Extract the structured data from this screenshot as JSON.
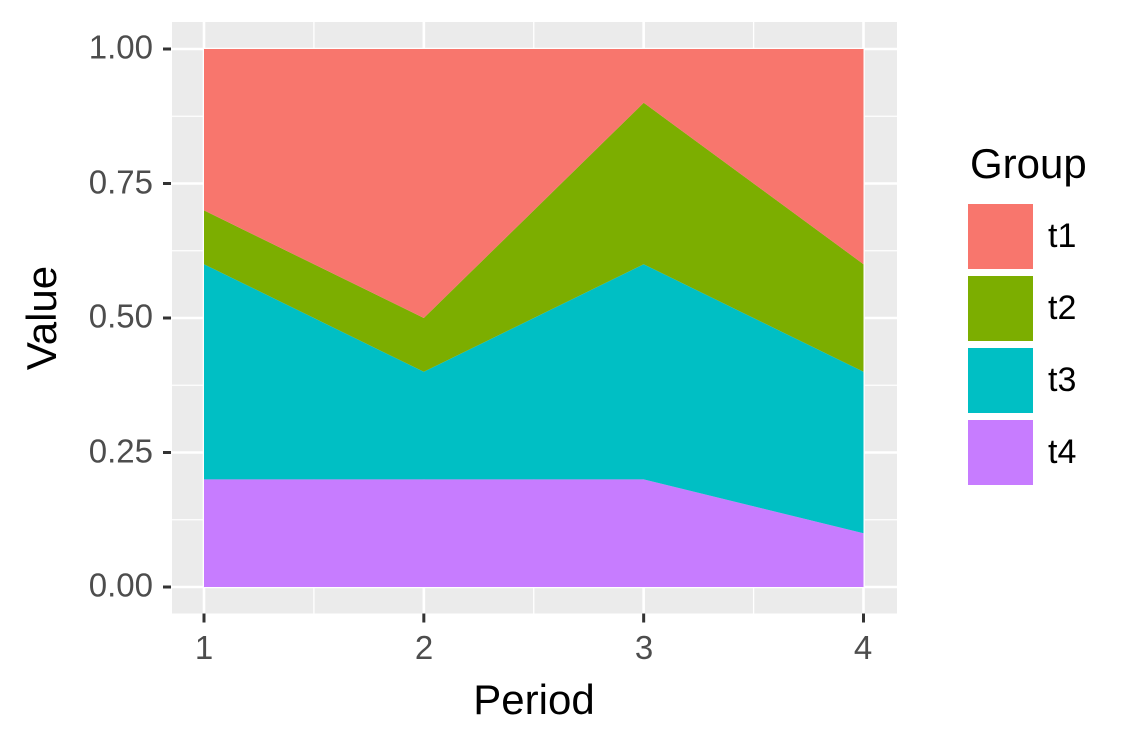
{
  "chart_data": {
    "type": "area",
    "stacked": true,
    "title": "",
    "xlabel": "Period",
    "ylabel": "Value",
    "legend_title": "Group",
    "legend_position": "right",
    "grid": true,
    "x": [
      1,
      2,
      3,
      4
    ],
    "xtick_labels": [
      "1",
      "2",
      "3",
      "4"
    ],
    "ytick_values": [
      0,
      0.25,
      0.5,
      0.75,
      1.0
    ],
    "ytick_labels": [
      "0.00",
      "0.25",
      "0.50",
      "0.75",
      "1.00"
    ],
    "y_minor_ticks": [
      0.125,
      0.375,
      0.625,
      0.875
    ],
    "x_minor_ticks": [
      1.5,
      2.5,
      3.5
    ],
    "xlim": [
      0.855,
      4.15
    ],
    "ylim": [
      -0.05,
      1.05
    ],
    "stack_order_bottom_to_top": [
      "t4",
      "t3",
      "t2",
      "t1"
    ],
    "series": [
      {
        "name": "t1",
        "color": "#F8766D",
        "values": [
          0.3,
          0.5,
          0.1,
          0.4
        ]
      },
      {
        "name": "t2",
        "color": "#7CAE00",
        "values": [
          0.1,
          0.1,
          0.3,
          0.2
        ]
      },
      {
        "name": "t3",
        "color": "#00BFC4",
        "values": [
          0.4,
          0.2,
          0.4,
          0.3
        ]
      },
      {
        "name": "t4",
        "color": "#C77CFF",
        "values": [
          0.2,
          0.2,
          0.2,
          0.1
        ]
      }
    ],
    "colors": {
      "panel_background": "#EBEBEB",
      "gridline": "#FFFFFF",
      "tick_mark": "#333333",
      "tick_label": "#4D4D4D",
      "title_text": "#000000",
      "page_background": "#FFFFFF"
    }
  }
}
